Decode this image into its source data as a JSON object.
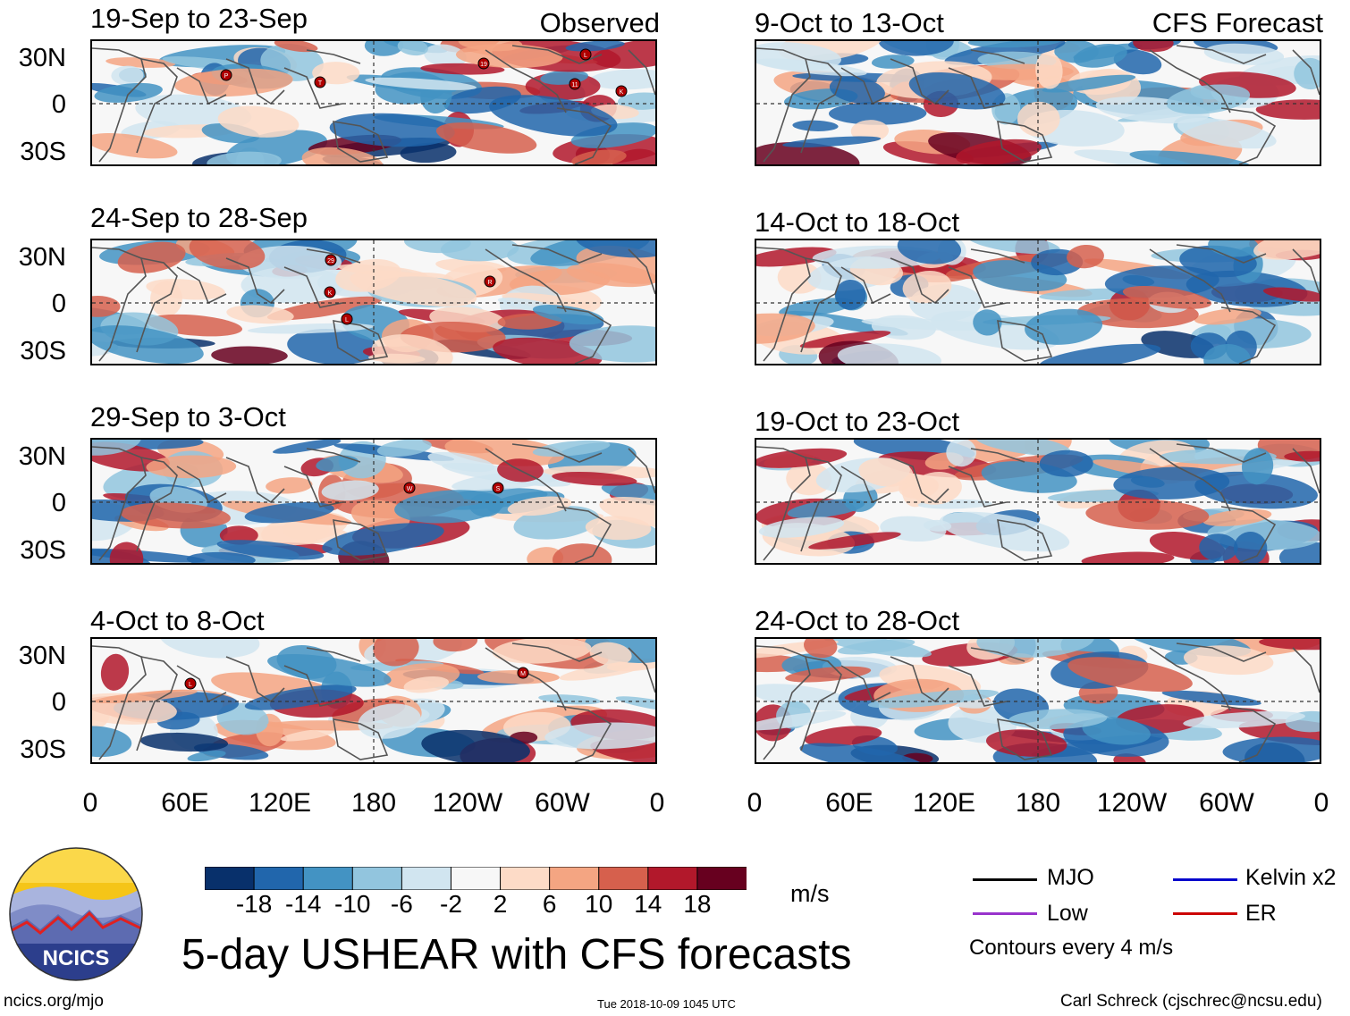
{
  "header": {
    "observed_label": "Observed",
    "forecast_label": "CFS Forecast"
  },
  "panels_left": [
    {
      "title": "19-Sep to 23-Sep",
      "storms": [
        "P",
        "T",
        "19",
        "L",
        "11",
        "K"
      ]
    },
    {
      "title": "24-Sep to 28-Sep",
      "storms": [
        "29",
        "K",
        "L",
        "R"
      ]
    },
    {
      "title": "29-Sep to 3-Oct",
      "storms": [
        "W",
        "S"
      ]
    },
    {
      "title": "4-Oct to 8-Oct",
      "storms": [
        "L",
        "M"
      ]
    }
  ],
  "panels_right": [
    {
      "title": "9-Oct to 13-Oct"
    },
    {
      "title": "14-Oct to 18-Oct"
    },
    {
      "title": "19-Oct to 23-Oct"
    },
    {
      "title": "24-Oct to 28-Oct"
    }
  ],
  "lat_labels": [
    "30N",
    "0",
    "30S"
  ],
  "lon_labels": [
    "0",
    "60E",
    "120E",
    "180",
    "120W",
    "60W",
    "0"
  ],
  "colorbar": {
    "colors": [
      "#08306b",
      "#2166ac",
      "#4393c3",
      "#92c5de",
      "#d1e5f0",
      "#f7f7f7",
      "#fddbc7",
      "#f4a582",
      "#d6604d",
      "#b2182b",
      "#67001f"
    ],
    "ticks": [
      "-18",
      "-14",
      "-10",
      "-6",
      "-2",
      "2",
      "6",
      "10",
      "14",
      "18"
    ],
    "units": "m/s"
  },
  "legend": {
    "items": [
      {
        "label": "MJO",
        "color": "#000000"
      },
      {
        "label": "Kelvin x2",
        "color": "#0000cc"
      },
      {
        "label": "Low",
        "color": "#9933cc"
      },
      {
        "label": "ER",
        "color": "#cc0000"
      }
    ],
    "contours": "Contours every 4 m/s"
  },
  "logo_text": "NCICS",
  "main_title": "5-day USHEAR with CFS forecasts",
  "footer": {
    "url": "ncics.org/mjo",
    "timestamp": "Tue 2018-10-09 1045 UTC",
    "credit": "Carl Schreck (cjschrec@ncsu.edu)"
  }
}
